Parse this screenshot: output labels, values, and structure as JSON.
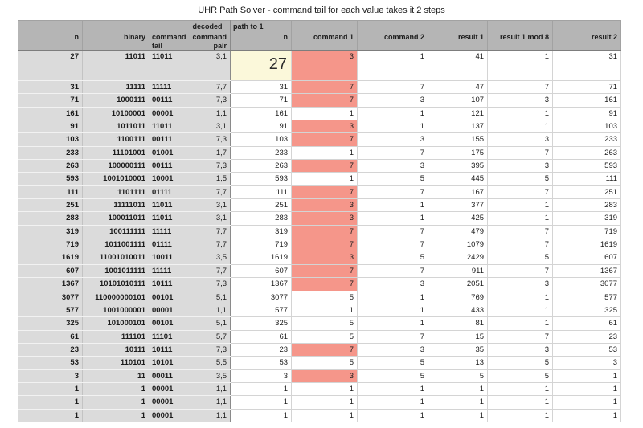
{
  "title": "UHR Path Solver - command tail for each value takes it 2 steps",
  "colors": {
    "header_bg": "#b5b5b5",
    "left_section_bg": "#dbdbdb",
    "highlight_yellow": "#fbf8da",
    "highlight_red": "#f5968a"
  },
  "table": {
    "columns": [
      {
        "key": "n",
        "label": "n",
        "group": "",
        "section": "gray",
        "align": "right"
      },
      {
        "key": "binary",
        "label": "binary",
        "group": "",
        "section": "gray",
        "align": "right"
      },
      {
        "key": "tail",
        "label": "command tail",
        "group": "",
        "section": "gray",
        "align": "left"
      },
      {
        "key": "pair",
        "label": "command pair",
        "group": "decoded",
        "section": "gray",
        "align": "right"
      },
      {
        "key": "path_n",
        "label": "n",
        "group": "path to 1",
        "section": "white",
        "align": "right"
      },
      {
        "key": "cmd1",
        "label": "command 1",
        "group": "",
        "section": "white",
        "align": "right"
      },
      {
        "key": "cmd2",
        "label": "command 2",
        "group": "",
        "section": "white",
        "align": "right"
      },
      {
        "key": "r1",
        "label": "result 1",
        "group": "",
        "section": "white",
        "align": "right"
      },
      {
        "key": "mod8",
        "label": "result 1 mod 8",
        "group": "",
        "section": "white",
        "align": "right"
      },
      {
        "key": "r2",
        "label": "result 2",
        "group": "",
        "section": "white",
        "align": "right"
      }
    ],
    "focused_cell": {
      "row_index": 0,
      "column": "path_n",
      "value": "27"
    },
    "rows": [
      {
        "n": "27",
        "binary": "11011",
        "tail": "11011",
        "pair": "3,1",
        "path_n": "27",
        "cmd1": "3",
        "cmd2": "1",
        "r1": "41",
        "mod8": "1",
        "r2": "31",
        "cmd1_hl": true
      },
      {
        "n": "31",
        "binary": "11111",
        "tail": "11111",
        "pair": "7,7",
        "path_n": "31",
        "cmd1": "7",
        "cmd2": "7",
        "r1": "47",
        "mod8": "7",
        "r2": "71",
        "cmd1_hl": true
      },
      {
        "n": "71",
        "binary": "1000111",
        "tail": "00111",
        "pair": "7,3",
        "path_n": "71",
        "cmd1": "7",
        "cmd2": "3",
        "r1": "107",
        "mod8": "3",
        "r2": "161",
        "cmd1_hl": true
      },
      {
        "n": "161",
        "binary": "10100001",
        "tail": "00001",
        "pair": "1,1",
        "path_n": "161",
        "cmd1": "1",
        "cmd2": "1",
        "r1": "121",
        "mod8": "1",
        "r2": "91",
        "cmd1_hl": false
      },
      {
        "n": "91",
        "binary": "1011011",
        "tail": "11011",
        "pair": "3,1",
        "path_n": "91",
        "cmd1": "3",
        "cmd2": "1",
        "r1": "137",
        "mod8": "1",
        "r2": "103",
        "cmd1_hl": true
      },
      {
        "n": "103",
        "binary": "1100111",
        "tail": "00111",
        "pair": "7,3",
        "path_n": "103",
        "cmd1": "7",
        "cmd2": "3",
        "r1": "155",
        "mod8": "3",
        "r2": "233",
        "cmd1_hl": true
      },
      {
        "n": "233",
        "binary": "11101001",
        "tail": "01001",
        "pair": "1,7",
        "path_n": "233",
        "cmd1": "1",
        "cmd2": "7",
        "r1": "175",
        "mod8": "7",
        "r2": "263",
        "cmd1_hl": false
      },
      {
        "n": "263",
        "binary": "100000111",
        "tail": "00111",
        "pair": "7,3",
        "path_n": "263",
        "cmd1": "7",
        "cmd2": "3",
        "r1": "395",
        "mod8": "3",
        "r2": "593",
        "cmd1_hl": true
      },
      {
        "n": "593",
        "binary": "1001010001",
        "tail": "10001",
        "pair": "1,5",
        "path_n": "593",
        "cmd1": "1",
        "cmd2": "5",
        "r1": "445",
        "mod8": "5",
        "r2": "111",
        "cmd1_hl": false
      },
      {
        "n": "111",
        "binary": "1101111",
        "tail": "01111",
        "pair": "7,7",
        "path_n": "111",
        "cmd1": "7",
        "cmd2": "7",
        "r1": "167",
        "mod8": "7",
        "r2": "251",
        "cmd1_hl": true
      },
      {
        "n": "251",
        "binary": "11111011",
        "tail": "11011",
        "pair": "3,1",
        "path_n": "251",
        "cmd1": "3",
        "cmd2": "1",
        "r1": "377",
        "mod8": "1",
        "r2": "283",
        "cmd1_hl": true
      },
      {
        "n": "283",
        "binary": "100011011",
        "tail": "11011",
        "pair": "3,1",
        "path_n": "283",
        "cmd1": "3",
        "cmd2": "1",
        "r1": "425",
        "mod8": "1",
        "r2": "319",
        "cmd1_hl": true
      },
      {
        "n": "319",
        "binary": "100111111",
        "tail": "11111",
        "pair": "7,7",
        "path_n": "319",
        "cmd1": "7",
        "cmd2": "7",
        "r1": "479",
        "mod8": "7",
        "r2": "719",
        "cmd1_hl": true
      },
      {
        "n": "719",
        "binary": "1011001111",
        "tail": "01111",
        "pair": "7,7",
        "path_n": "719",
        "cmd1": "7",
        "cmd2": "7",
        "r1": "1079",
        "mod8": "7",
        "r2": "1619",
        "cmd1_hl": true
      },
      {
        "n": "1619",
        "binary": "11001010011",
        "tail": "10011",
        "pair": "3,5",
        "path_n": "1619",
        "cmd1": "3",
        "cmd2": "5",
        "r1": "2429",
        "mod8": "5",
        "r2": "607",
        "cmd1_hl": true
      },
      {
        "n": "607",
        "binary": "1001011111",
        "tail": "11111",
        "pair": "7,7",
        "path_n": "607",
        "cmd1": "7",
        "cmd2": "7",
        "r1": "911",
        "mod8": "7",
        "r2": "1367",
        "cmd1_hl": true
      },
      {
        "n": "1367",
        "binary": "10101010111",
        "tail": "10111",
        "pair": "7,3",
        "path_n": "1367",
        "cmd1": "7",
        "cmd2": "3",
        "r1": "2051",
        "mod8": "3",
        "r2": "3077",
        "cmd1_hl": true
      },
      {
        "n": "3077",
        "binary": "110000000101",
        "tail": "00101",
        "pair": "5,1",
        "path_n": "3077",
        "cmd1": "5",
        "cmd2": "1",
        "r1": "769",
        "mod8": "1",
        "r2": "577",
        "cmd1_hl": false
      },
      {
        "n": "577",
        "binary": "1001000001",
        "tail": "00001",
        "pair": "1,1",
        "path_n": "577",
        "cmd1": "1",
        "cmd2": "1",
        "r1": "433",
        "mod8": "1",
        "r2": "325",
        "cmd1_hl": false
      },
      {
        "n": "325",
        "binary": "101000101",
        "tail": "00101",
        "pair": "5,1",
        "path_n": "325",
        "cmd1": "5",
        "cmd2": "1",
        "r1": "81",
        "mod8": "1",
        "r2": "61",
        "cmd1_hl": false
      },
      {
        "n": "61",
        "binary": "111101",
        "tail": "11101",
        "pair": "5,7",
        "path_n": "61",
        "cmd1": "5",
        "cmd2": "7",
        "r1": "15",
        "mod8": "7",
        "r2": "23",
        "cmd1_hl": false
      },
      {
        "n": "23",
        "binary": "10111",
        "tail": "10111",
        "pair": "7,3",
        "path_n": "23",
        "cmd1": "7",
        "cmd2": "3",
        "r1": "35",
        "mod8": "3",
        "r2": "53",
        "cmd1_hl": true
      },
      {
        "n": "53",
        "binary": "110101",
        "tail": "10101",
        "pair": "5,5",
        "path_n": "53",
        "cmd1": "5",
        "cmd2": "5",
        "r1": "13",
        "mod8": "5",
        "r2": "3",
        "cmd1_hl": false
      },
      {
        "n": "3",
        "binary": "11",
        "tail": "00011",
        "pair": "3,5",
        "path_n": "3",
        "cmd1": "3",
        "cmd2": "5",
        "r1": "5",
        "mod8": "5",
        "r2": "1",
        "cmd1_hl": true
      },
      {
        "n": "1",
        "binary": "1",
        "tail": "00001",
        "pair": "1,1",
        "path_n": "1",
        "cmd1": "1",
        "cmd2": "1",
        "r1": "1",
        "mod8": "1",
        "r2": "1",
        "cmd1_hl": false
      },
      {
        "n": "1",
        "binary": "1",
        "tail": "00001",
        "pair": "1,1",
        "path_n": "1",
        "cmd1": "1",
        "cmd2": "1",
        "r1": "1",
        "mod8": "1",
        "r2": "1",
        "cmd1_hl": false
      },
      {
        "n": "1",
        "binary": "1",
        "tail": "00001",
        "pair": "1,1",
        "path_n": "1",
        "cmd1": "1",
        "cmd2": "1",
        "r1": "1",
        "mod8": "1",
        "r2": "1",
        "cmd1_hl": false
      }
    ]
  }
}
